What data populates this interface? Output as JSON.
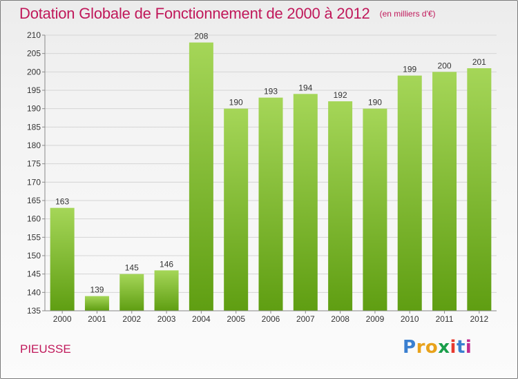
{
  "title": "Dotation Globale de Fonctionnement de 2000 à 2012",
  "unit": "(en milliers d'€)",
  "commune": "PIEUSSE",
  "logo": {
    "text": "Proxiti",
    "colors": [
      "#3a7fd0",
      "#e8a21b",
      "#e8a21b",
      "#1a9e4a",
      "#e83a2f",
      "#3a7fd0",
      "#c02a8f"
    ]
  },
  "colors": {
    "title": "#c0185a",
    "bar_top": "#a5d658",
    "bar_bottom": "#5f9e12"
  },
  "chart_data": {
    "type": "bar",
    "categories": [
      "2000",
      "2001",
      "2002",
      "2003",
      "2004",
      "2005",
      "2006",
      "2007",
      "2008",
      "2009",
      "2010",
      "2011",
      "2012"
    ],
    "values": [
      163,
      139,
      145,
      146,
      208,
      190,
      193,
      194,
      192,
      190,
      199,
      200,
      201
    ],
    "ylim": [
      135,
      210
    ],
    "yticks": [
      135,
      140,
      145,
      150,
      155,
      160,
      165,
      170,
      175,
      180,
      185,
      190,
      195,
      200,
      205,
      210
    ],
    "grid": true
  }
}
